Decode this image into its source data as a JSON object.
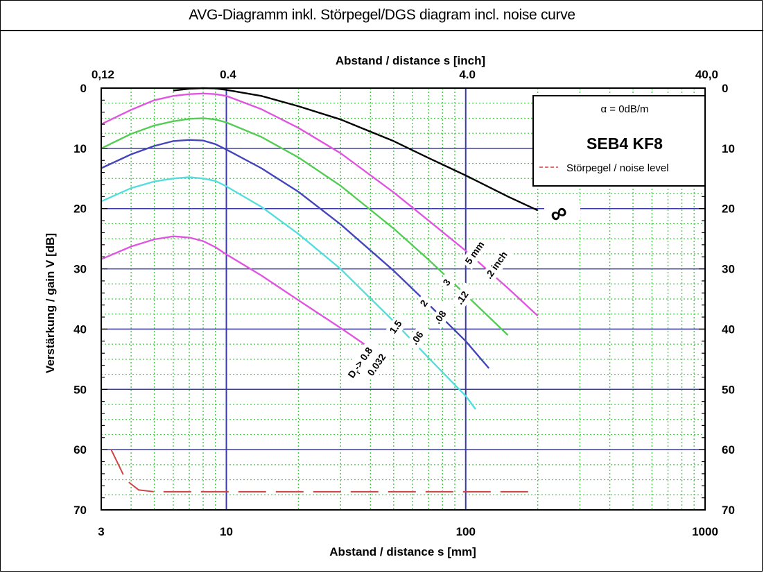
{
  "chart_data": {
    "type": "line",
    "title": "AVG-Diagramm inkl. Störpegel/DGS diagram incl. noise curve",
    "xlabel": "Abstand / distance s [mm]",
    "x2label": "Abstand / distance s [inch]",
    "ylabel": "Verstärkung / gain V [dB]",
    "x_scale": "log",
    "xlim": [
      3,
      1000
    ],
    "ylim": [
      70,
      0
    ],
    "x_ticks": [
      "3",
      "10",
      "100",
      "1000"
    ],
    "x_tick_values": [
      3,
      10,
      100,
      1000
    ],
    "x2_ticks": [
      "0,12",
      "0.4",
      "4.0",
      "40,0"
    ],
    "x2_tick_values_mm": [
      3.05,
      10.16,
      101.6,
      1016
    ],
    "y_ticks": [
      "0",
      "10",
      "20",
      "30",
      "40",
      "50",
      "60",
      "70"
    ],
    "grid": true,
    "legend": {
      "alpha": "α = 0dB/m",
      "probe": "SEB4 KF8",
      "noise": "Störpegel / noise level"
    },
    "labels": {
      "infinity": "∞",
      "mm_unit": "5 mm",
      "inch_unit": ".2 inch",
      "dr_prefix": "D",
      "dr_sub": "r",
      "dr_arrow": "-> 0.8",
      "mm": [
        "1.5",
        "2",
        "3"
      ],
      "inch": [
        "0.032",
        ".06",
        ".08",
        ".12"
      ]
    },
    "series": [
      {
        "color": "#000000",
        "x": [
          6,
          7,
          8,
          9,
          10,
          14,
          20,
          30,
          50,
          70,
          100,
          150,
          200
        ],
        "y": [
          0.4,
          0.1,
          0.0,
          0.05,
          0.3,
          1.3,
          3.0,
          5.2,
          8.8,
          11.6,
          14.5,
          18.0,
          20.3
        ]
      },
      {
        "color": "#e055e0",
        "x": [
          3,
          4,
          5,
          6,
          7,
          8,
          9,
          10,
          14,
          20,
          30,
          50,
          70,
          100,
          150,
          200
        ],
        "y": [
          6.0,
          3.6,
          2.0,
          1.3,
          1.0,
          0.9,
          1.0,
          1.3,
          3.5,
          6.6,
          10.8,
          17.3,
          22.0,
          27.0,
          33.2,
          37.8
        ]
      },
      {
        "color": "#55cc55",
        "x": [
          3,
          4,
          5,
          6,
          7,
          8,
          9,
          10,
          14,
          20,
          30,
          50,
          70,
          100,
          150
        ],
        "y": [
          10.0,
          7.6,
          6.2,
          5.5,
          5.1,
          5.0,
          5.2,
          5.7,
          8.1,
          11.5,
          16.2,
          23.3,
          28.5,
          34.3,
          41.0
        ]
      },
      {
        "color": "#4444bb",
        "x": [
          3,
          4,
          5,
          6,
          7,
          8,
          9,
          10,
          14,
          20,
          30,
          50,
          70,
          100,
          125
        ],
        "y": [
          13.3,
          11.0,
          9.6,
          8.8,
          8.6,
          8.7,
          9.3,
          10.2,
          13.3,
          17.2,
          22.6,
          30.3,
          35.9,
          42.0,
          46.5
        ]
      },
      {
        "color": "#55dddd",
        "x": [
          3,
          4,
          5,
          6,
          7,
          8,
          9,
          10,
          14,
          20,
          30,
          50,
          70,
          100,
          110
        ],
        "y": [
          18.8,
          16.6,
          15.5,
          15.0,
          14.8,
          15.0,
          15.4,
          16.3,
          19.7,
          24.2,
          30.0,
          38.7,
          44.8,
          51.1,
          53.3
        ]
      },
      {
        "color": "#e055e0",
        "x": [
          3,
          4,
          5,
          6,
          7,
          8,
          9,
          10,
          14,
          20,
          30,
          40
        ],
        "y": [
          28.4,
          26.3,
          25.1,
          24.6,
          24.8,
          25.4,
          26.4,
          27.6,
          31.1,
          35.2,
          39.8,
          43.2
        ]
      }
    ],
    "noise": {
      "color": "#cc4444",
      "x": [
        3.3,
        3.8,
        4.3,
        5,
        200
      ],
      "y": [
        60,
        65,
        66.7,
        67,
        67
      ]
    }
  }
}
